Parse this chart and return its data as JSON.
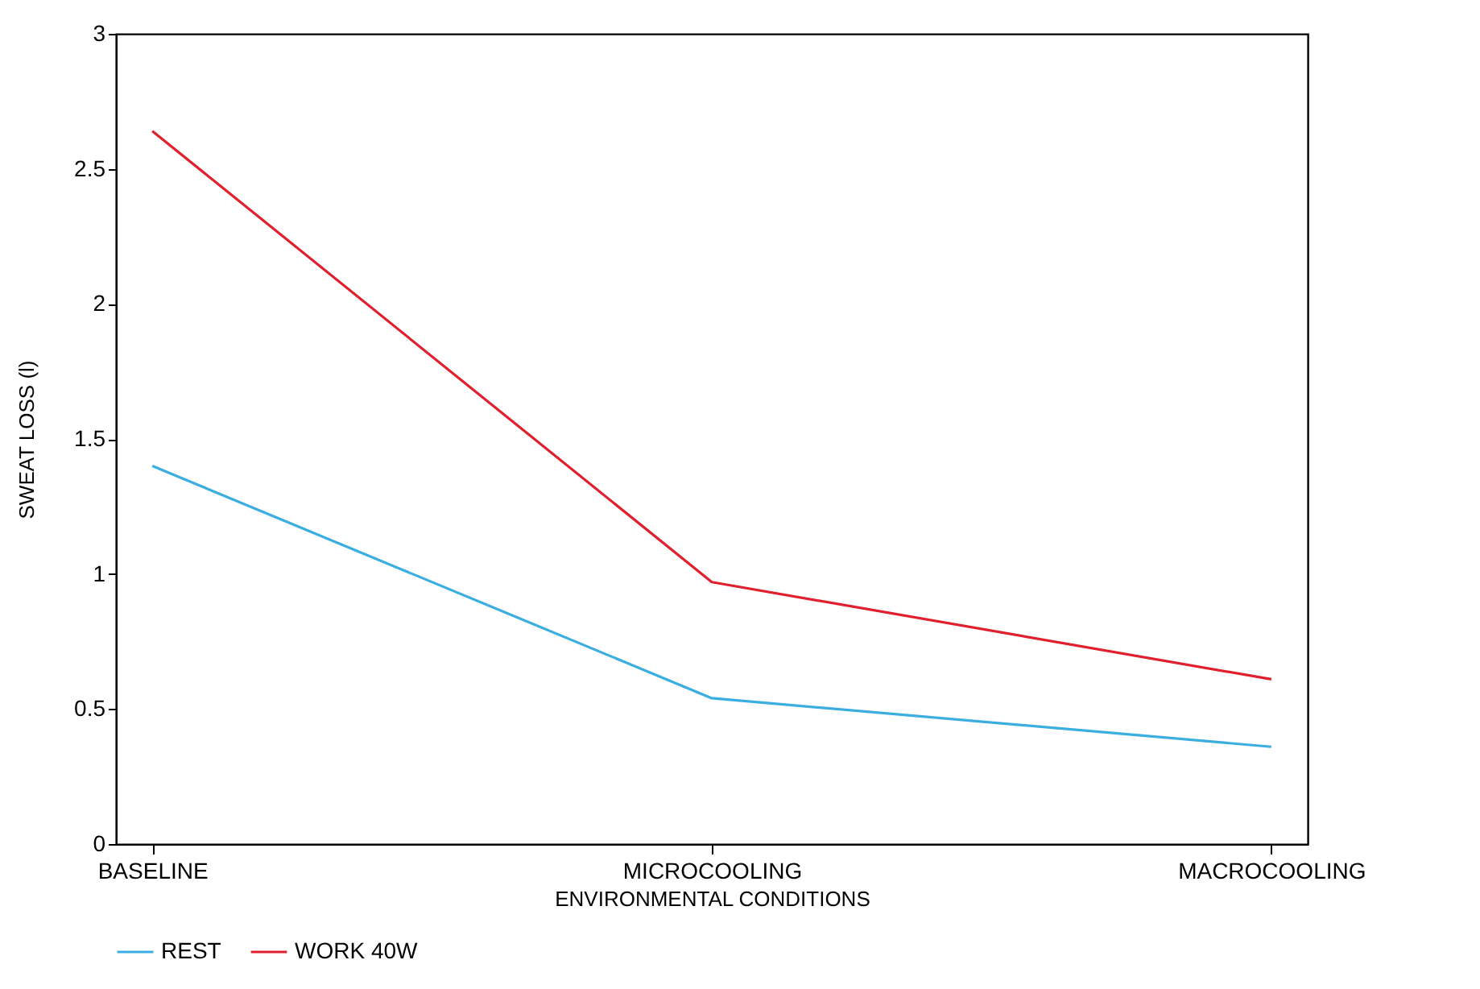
{
  "chart_data": {
    "type": "line",
    "xlabel": "ENVIRONMENTAL CONDITIONS",
    "ylabel": "SWEAT LOSS (l)",
    "categories": [
      "BASELINE",
      "MICROCOOLING",
      "MACROCOOLING"
    ],
    "series": [
      {
        "name": "REST",
        "color": "#3aaee0",
        "values": [
          1.4,
          0.54,
          0.36
        ]
      },
      {
        "name": "WORK 40W",
        "color": "#e0202e",
        "values": [
          2.64,
          0.97,
          0.61
        ]
      }
    ],
    "ylim": [
      0,
      3
    ],
    "yticks": [
      0,
      0.5,
      1,
      1.5,
      2,
      2.5,
      3
    ],
    "grid": false,
    "legend": "bottom",
    "marker": "none",
    "line_style": "solid"
  }
}
